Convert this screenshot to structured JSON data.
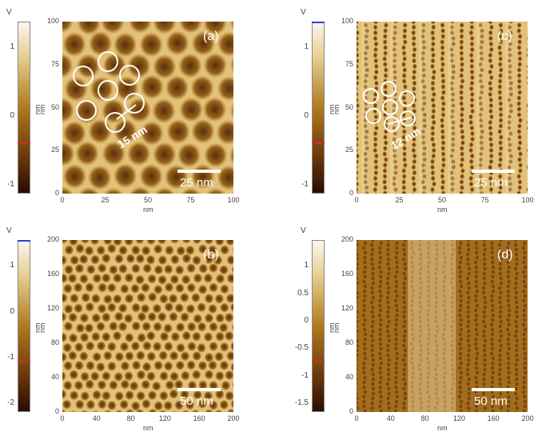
{
  "colors": {
    "colorbar_top": "#fbf7ee",
    "colorbar_mid": "#b07a1c",
    "colorbar_bottom": "#2a0c02",
    "marker_blue": "#2b3fe0",
    "marker_red": "#c83232"
  },
  "panels": [
    {
      "id": "a",
      "label": "(a)",
      "colorbar": {
        "unit": "V",
        "axis_label": "nm",
        "ticks": [
          "1",
          "0",
          "-1"
        ]
      },
      "xticks": [
        "0",
        "25",
        "50",
        "75",
        "100"
      ],
      "yticks": [
        "0",
        "25",
        "50",
        "75",
        "100"
      ],
      "xlabel": "nm",
      "ylabel": "nm",
      "scalebar": "25 nm",
      "annotation": "15 nm",
      "pattern": "hex-large",
      "marker": "red"
    },
    {
      "id": "c",
      "label": "(c)",
      "colorbar": {
        "unit": "V",
        "axis_label": "nm",
        "ticks": [
          "1",
          "0",
          "-1"
        ]
      },
      "xticks": [
        "0",
        "25",
        "50",
        "75",
        "100"
      ],
      "yticks": [
        "0",
        "25",
        "50",
        "75",
        "100"
      ],
      "xlabel": "nm",
      "ylabel": "nm",
      "scalebar": "25 nm",
      "annotation": "12 nm",
      "pattern": "stripes",
      "marker": "blue-red"
    },
    {
      "id": "b",
      "label": "(b)",
      "colorbar": {
        "unit": "V",
        "axis_label": "nm",
        "ticks": [
          "1",
          "0",
          "-1",
          "-2"
        ]
      },
      "xticks": [
        "0",
        "40",
        "80",
        "120",
        "160",
        "200"
      ],
      "yticks": [
        "0",
        "40",
        "80",
        "120",
        "160",
        "200"
      ],
      "xlabel": "nm",
      "ylabel": "nm",
      "scalebar": "50 nm",
      "annotation": "",
      "pattern": "hex-small",
      "marker": "blue-red"
    },
    {
      "id": "d",
      "label": "(d)",
      "colorbar": {
        "unit": "V",
        "axis_label": "nm",
        "ticks": [
          "1",
          "0.5",
          "0",
          "-0.5",
          "-1",
          "-1.5"
        ]
      },
      "xticks": [
        "0",
        "40",
        "80",
        "120",
        "160",
        "200"
      ],
      "yticks": [
        "0",
        "40",
        "80",
        "120",
        "160",
        "200"
      ],
      "xlabel": "nm",
      "ylabel": "nm",
      "scalebar": "50 nm",
      "annotation": "",
      "pattern": "stripes-fine",
      "marker": "red"
    }
  ]
}
